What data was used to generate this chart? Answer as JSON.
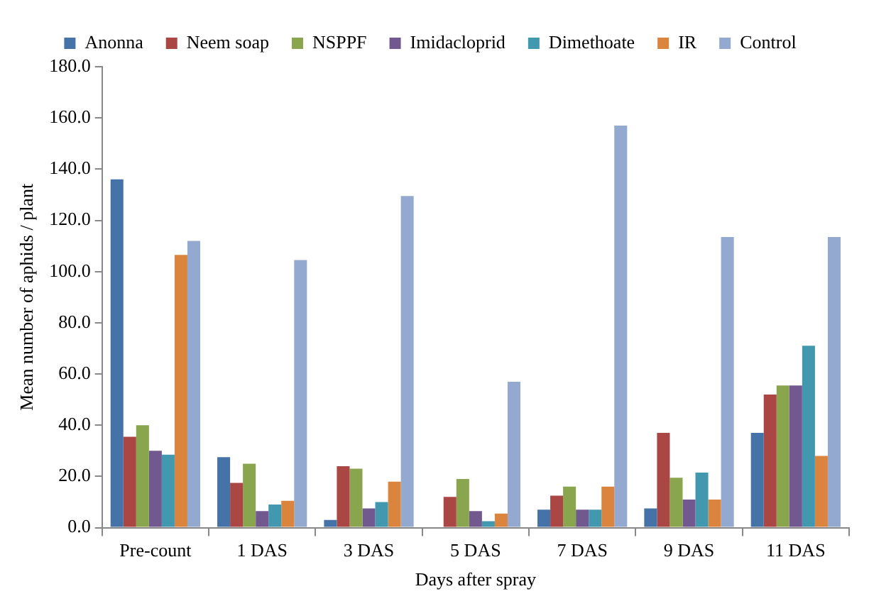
{
  "chart_data": {
    "type": "bar",
    "xlabel": "Days after spray",
    "ylabel": "Mean number of aphids / plant",
    "categories": [
      "Pre-count",
      "1 DAS",
      "3 DAS",
      "5 DAS",
      "7 DAS",
      "9 DAS",
      "11 DAS"
    ],
    "series": [
      {
        "name": "Anonna",
        "color": "#4572a7",
        "values": [
          136,
          27.5,
          3,
          0,
          7,
          7.5,
          37
        ]
      },
      {
        "name": "Neem soap",
        "color": "#aa4643",
        "values": [
          35.5,
          17.5,
          24,
          12,
          12.5,
          37,
          52
        ]
      },
      {
        "name": "NSPPF",
        "color": "#89a54e",
        "values": [
          40,
          25,
          23,
          19,
          16,
          19.5,
          55.5
        ]
      },
      {
        "name": "Imidacloprid",
        "color": "#71588f",
        "values": [
          30,
          6.5,
          7.5,
          6.5,
          7,
          11,
          55.5
        ]
      },
      {
        "name": "Dimethoate",
        "color": "#4198af",
        "values": [
          28.5,
          9,
          10,
          2.5,
          7,
          21.5,
          71
        ]
      },
      {
        "name": "IR",
        "color": "#db843d",
        "values": [
          106.5,
          10.5,
          18,
          5.5,
          16,
          11,
          28
        ]
      },
      {
        "name": "Control",
        "color": "#93a9cf",
        "values": [
          112,
          104.5,
          129.5,
          57,
          157,
          113.5,
          113.5
        ]
      }
    ],
    "ylim": [
      0,
      180
    ],
    "yticks": [
      {
        "value": 0,
        "label": "0.0"
      },
      {
        "value": 20,
        "label": "20.0"
      },
      {
        "value": 40,
        "label": "40.0"
      },
      {
        "value": 60,
        "label": "60.0"
      },
      {
        "value": 80,
        "label": "80.0"
      },
      {
        "value": 100,
        "label": "100.0"
      },
      {
        "value": 120,
        "label": "120.0"
      },
      {
        "value": 140,
        "label": "140.0"
      },
      {
        "value": 160,
        "label": "160.0"
      },
      {
        "value": 180,
        "label": "180.0"
      }
    ],
    "legend": "top"
  }
}
